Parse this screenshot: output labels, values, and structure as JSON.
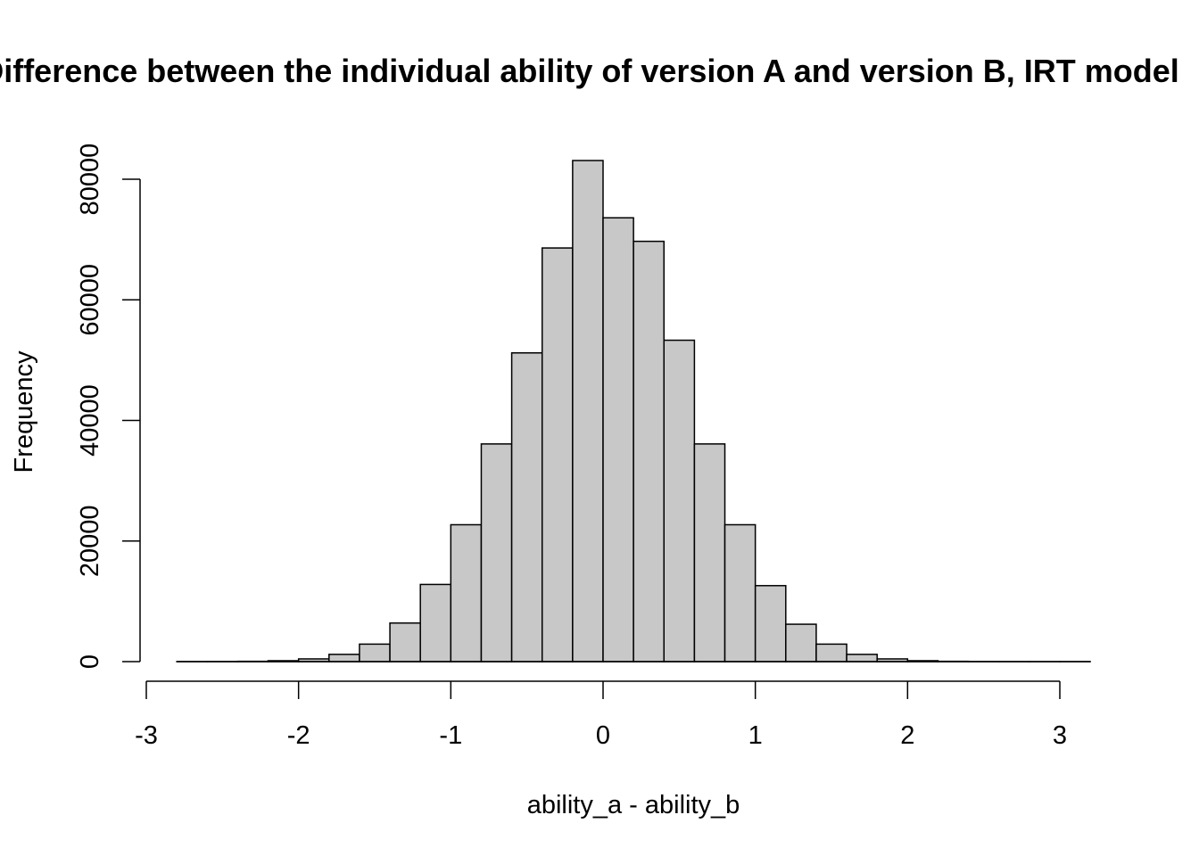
{
  "chart_data": {
    "type": "histogram",
    "title": "Difference between the individual ability of version A and version B, IRT model",
    "xlabel": "ability_a - ability_b",
    "ylabel": "Frequency",
    "xlim": [
      -3,
      3
    ],
    "ylim": [
      0,
      80000
    ],
    "x_ticks": [
      "-3",
      "-2",
      "-1",
      "0",
      "1",
      "2",
      "3"
    ],
    "y_ticks": [
      "0",
      "20000",
      "40000",
      "60000",
      "80000"
    ],
    "bin_width": 0.2,
    "bins_start": -2.8,
    "counts": [
      5,
      15,
      50,
      150,
      450,
      1200,
      2900,
      6400,
      12800,
      22700,
      36100,
      51200,
      68600,
      83100,
      73600,
      69700,
      53300,
      36100,
      22700,
      12600,
      6200,
      2900,
      1200,
      450,
      150,
      50,
      15,
      5,
      2,
      1
    ],
    "bar_fill": "#c8c8c8",
    "bar_stroke": "#000000",
    "grid": false,
    "legend": "none"
  }
}
